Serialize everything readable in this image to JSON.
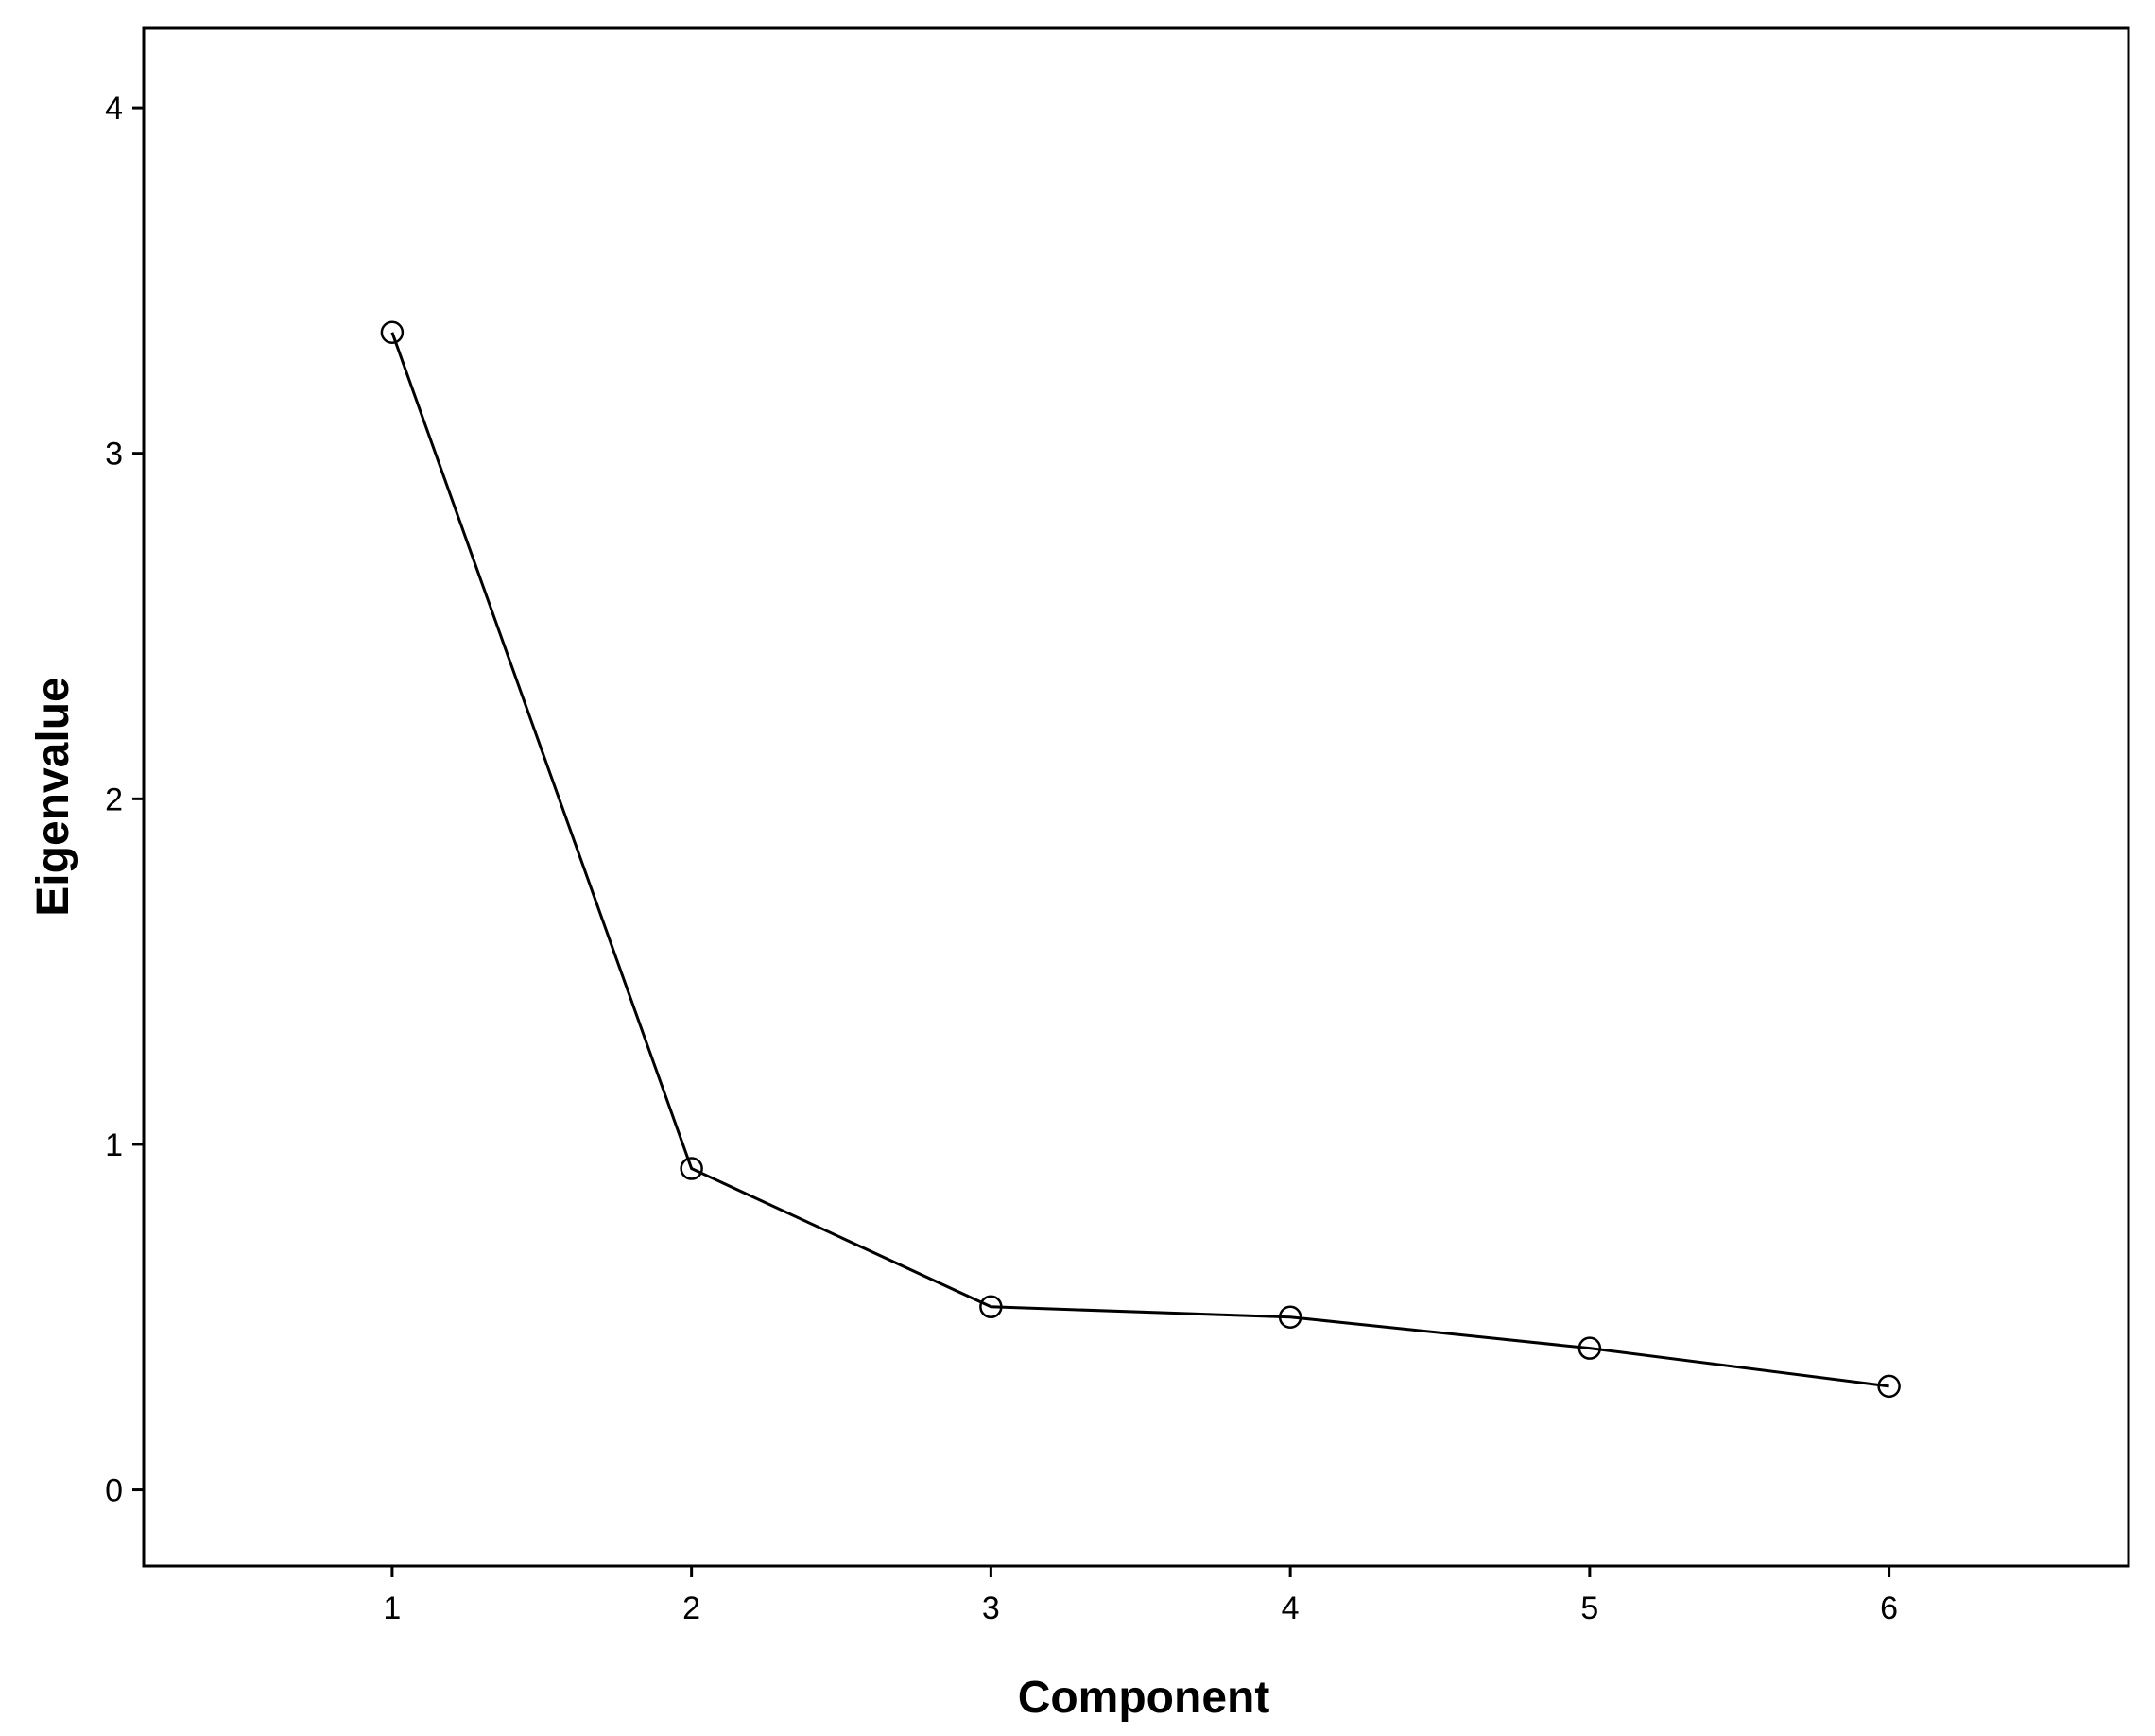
{
  "chart_data": {
    "type": "line",
    "title": "",
    "xlabel": "Component",
    "ylabel": "Eigenvalue",
    "x": [
      1,
      2,
      3,
      4,
      5,
      6
    ],
    "xlim": [
      0.17,
      6.8
    ],
    "ylim": [
      -0.22,
      4.23
    ],
    "x_ticks": [
      "1",
      "2",
      "3",
      "4",
      "5",
      "6"
    ],
    "y_ticks": [
      "0",
      "1",
      "2",
      "3",
      "4"
    ],
    "series": [
      {
        "values": [
          3.35,
          0.93,
          0.53,
          0.5,
          0.41,
          0.3
        ]
      }
    ],
    "marker": "open-circle",
    "line_color": "#000000",
    "grid": false,
    "legend": "none"
  }
}
